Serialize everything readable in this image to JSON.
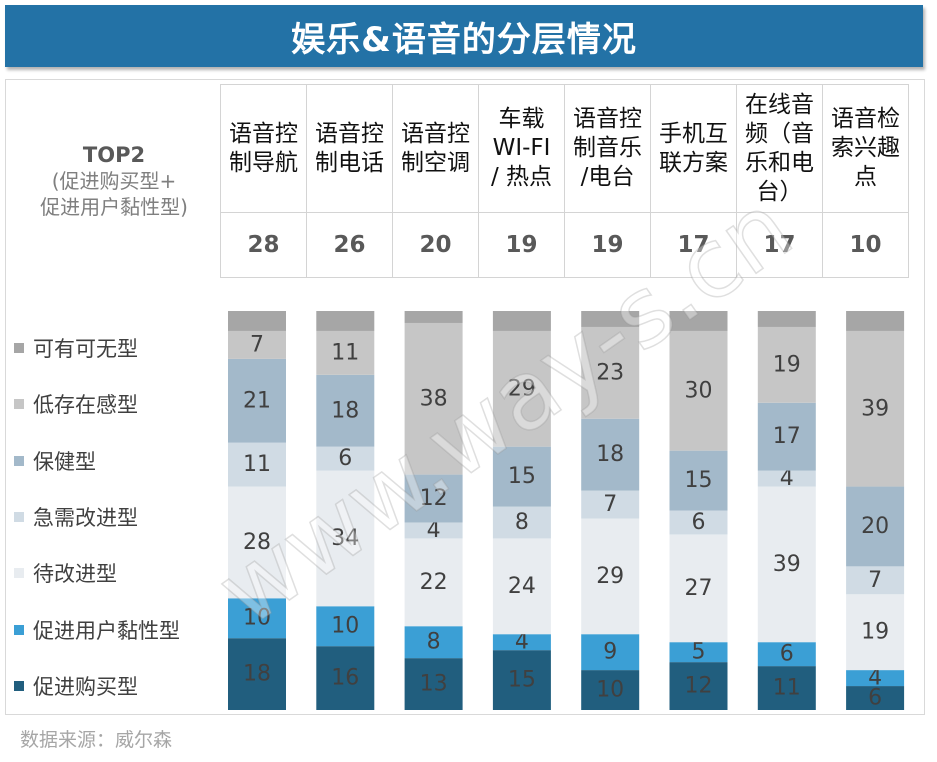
{
  "theme": {
    "title_bg": "#2372a6"
  },
  "header": {
    "top2_title": "TOP2",
    "top2_note": [
      "(促进购买型+",
      "促进用户黏性型)"
    ]
  },
  "source": "数据来源：威尔森",
  "watermark": "www.way-s.cn",
  "chart_data": {
    "type": "bar",
    "stacked": true,
    "title": "娱乐&语音的分层情况",
    "categories": [
      [
        "语音控",
        "制导航"
      ],
      [
        "语音控",
        "制电话"
      ],
      [
        "语音控",
        "制空调"
      ],
      [
        "车载",
        "WI-FI",
        "/ 热点"
      ],
      [
        "语音控",
        "制音乐",
        "/电台"
      ],
      [
        "手机互",
        "联方案"
      ],
      [
        "在线音",
        "频（音",
        "乐和电",
        "台）"
      ],
      [
        "语音检",
        "索兴趣",
        "点"
      ]
    ],
    "top2_values": [
      28,
      26,
      20,
      19,
      19,
      17,
      17,
      10
    ],
    "series": [
      {
        "name": "可有可无型",
        "color": "#a6a6a6",
        "values": [
          5,
          5,
          3,
          5,
          4,
          5,
          4,
          5
        ],
        "labels_shown": false
      },
      {
        "name": "低存在感型",
        "color": "#c6c6c6",
        "values": [
          7,
          11,
          38,
          29,
          23,
          30,
          19,
          39
        ]
      },
      {
        "name": "保健型",
        "color": "#a3b9ca",
        "values": [
          21,
          18,
          12,
          15,
          18,
          15,
          17,
          20
        ]
      },
      {
        "name": "急需改进型",
        "color": "#d0dbe4",
        "values": [
          11,
          6,
          4,
          8,
          7,
          6,
          4,
          7
        ]
      },
      {
        "name": "待改进型",
        "color": "#e8ecf0",
        "values": [
          28,
          34,
          22,
          24,
          29,
          27,
          39,
          19
        ]
      },
      {
        "name": "促进用户黏性型",
        "color": "#3b9fd5",
        "values": [
          10,
          10,
          8,
          4,
          9,
          5,
          6,
          4
        ]
      },
      {
        "name": "促进购买型",
        "color": "#215e7e",
        "values": [
          18,
          16,
          13,
          15,
          10,
          12,
          11,
          6
        ]
      }
    ],
    "ylim": [
      0,
      100
    ],
    "legend_position": "left"
  }
}
